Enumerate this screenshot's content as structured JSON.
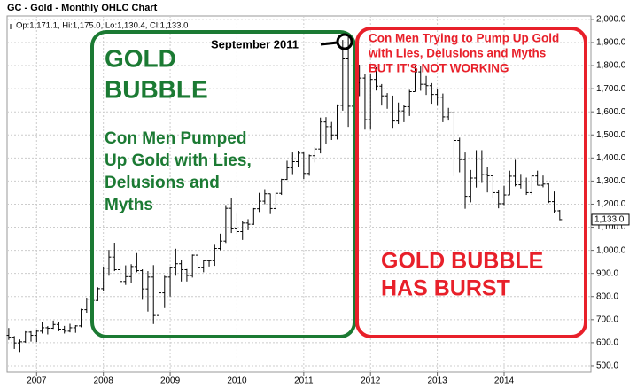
{
  "chart_data": {
    "type": "ohlc",
    "title": "GC - Gold - Monthly OHLC Chart",
    "legend_text": "Op:1,171.1, Hi:1,175.0, Lo:1,130.4, Cl:1,133.0",
    "color": "#000000",
    "grid": true,
    "ylim": [
      473,
      2015
    ],
    "yticks": [
      {
        "value": 500,
        "label": "500.0"
      },
      {
        "value": 600,
        "label": "600.0"
      },
      {
        "value": 700,
        "label": "700.0"
      },
      {
        "value": 800,
        "label": "800.0"
      },
      {
        "value": 900,
        "label": "900.0"
      },
      {
        "value": 1000,
        "label": "1,000.0"
      },
      {
        "value": 1100,
        "label": "1,100.0"
      },
      {
        "value": 1200,
        "label": "1,200.0"
      },
      {
        "value": 1300,
        "label": "1,300.0"
      },
      {
        "value": 1400,
        "label": "1,400.0"
      },
      {
        "value": 1500,
        "label": "1,500.0"
      },
      {
        "value": 1600,
        "label": "1,600.0"
      },
      {
        "value": 1700,
        "label": "1,700.0"
      },
      {
        "value": 1800,
        "label": "1,800.0"
      },
      {
        "value": 1900,
        "label": "1,900.0"
      },
      {
        "value": 2000,
        "label": "2,000.0"
      }
    ],
    "xlim": [
      -0.3,
      104.6
    ],
    "xticks": [
      {
        "value": 5,
        "label": "2007"
      },
      {
        "value": 17,
        "label": "2008"
      },
      {
        "value": 29,
        "label": "2009"
      },
      {
        "value": 41,
        "label": "2010"
      },
      {
        "value": 53,
        "label": "2011"
      },
      {
        "value": 65,
        "label": "2012"
      },
      {
        "value": 77,
        "label": "2013"
      },
      {
        "value": 89,
        "label": "2014"
      }
    ],
    "last_label": {
      "value": 1133,
      "label": "1,133.0"
    },
    "ohlc": [
      [
        632,
        664,
        612,
        624
      ],
      [
        624,
        629,
        573,
        599
      ],
      [
        599,
        614,
        560,
        604
      ],
      [
        604,
        650,
        600,
        646
      ],
      [
        646,
        650,
        605,
        632
      ],
      [
        632,
        655,
        603,
        650
      ],
      [
        650,
        690,
        640,
        665
      ],
      [
        665,
        672,
        636,
        663
      ],
      [
        663,
        696,
        660,
        679
      ],
      [
        679,
        691,
        650,
        659
      ],
      [
        659,
        673,
        640,
        650
      ],
      [
        650,
        682,
        645,
        665
      ],
      [
        665,
        676,
        643,
        673
      ],
      [
        673,
        747,
        667,
        743
      ],
      [
        743,
        795,
        730,
        789
      ],
      [
        789,
        848,
        775,
        783
      ],
      [
        783,
        840,
        780,
        834
      ],
      [
        834,
        930,
        825,
        923
      ],
      [
        923,
        1002,
        890,
        971
      ],
      [
        971,
        1033,
        910,
        916
      ],
      [
        916,
        935,
        860,
        865
      ],
      [
        865,
        935,
        850,
        886
      ],
      [
        886,
        940,
        860,
        930
      ],
      [
        930,
        988,
        905,
        912
      ],
      [
        912,
        918,
        786,
        833
      ],
      [
        833,
        910,
        735,
        884
      ],
      [
        884,
        936,
        681,
        718
      ],
      [
        718,
        830,
        705,
        816
      ],
      [
        816,
        890,
        750,
        884
      ],
      [
        884,
        930,
        800,
        927
      ],
      [
        927,
        1007,
        890,
        942
      ],
      [
        942,
        960,
        865,
        916
      ],
      [
        916,
        919,
        865,
        891
      ],
      [
        891,
        982,
        882,
        979
      ],
      [
        979,
        990,
        915,
        927
      ],
      [
        927,
        960,
        905,
        955
      ],
      [
        955,
        960,
        930,
        955
      ],
      [
        955,
        1024,
        933,
        1008
      ],
      [
        1008,
        1072,
        1000,
        1040
      ],
      [
        1040,
        1196,
        1032,
        1182
      ],
      [
        1182,
        1227,
        1075,
        1096
      ],
      [
        1096,
        1163,
        1070,
        1081
      ],
      [
        1081,
        1127,
        1045,
        1118
      ],
      [
        1118,
        1135,
        1087,
        1113
      ],
      [
        1113,
        1183,
        1110,
        1180
      ],
      [
        1180,
        1249,
        1166,
        1213
      ],
      [
        1213,
        1265,
        1200,
        1245
      ],
      [
        1245,
        1246,
        1157,
        1181
      ],
      [
        1181,
        1250,
        1176,
        1247
      ],
      [
        1247,
        1310,
        1240,
        1307
      ],
      [
        1307,
        1388,
        1305,
        1357
      ],
      [
        1357,
        1424,
        1330,
        1384
      ],
      [
        1384,
        1431,
        1362,
        1421
      ],
      [
        1421,
        1424,
        1309,
        1333
      ],
      [
        1333,
        1415,
        1323,
        1410
      ],
      [
        1410,
        1447,
        1381,
        1439
      ],
      [
        1439,
        1575,
        1420,
        1556
      ],
      [
        1556,
        1577,
        1462,
        1536
      ],
      [
        1536,
        1556,
        1478,
        1500
      ],
      [
        1500,
        1632,
        1480,
        1628
      ],
      [
        1628,
        1911,
        1605,
        1829
      ],
      [
        1829,
        1923,
        1535,
        1624
      ],
      [
        1624,
        1755,
        1603,
        1725
      ],
      [
        1725,
        1804,
        1668,
        1746
      ],
      [
        1746,
        1764,
        1523,
        1566
      ],
      [
        1566,
        1763,
        1523,
        1740
      ],
      [
        1740,
        1792,
        1692,
        1711
      ],
      [
        1711,
        1720,
        1627,
        1669
      ],
      [
        1669,
        1681,
        1613,
        1664
      ],
      [
        1664,
        1670,
        1527,
        1560
      ],
      [
        1560,
        1640,
        1547,
        1604
      ],
      [
        1604,
        1630,
        1555,
        1622
      ],
      [
        1622,
        1695,
        1582,
        1687
      ],
      [
        1687,
        1796,
        1687,
        1773
      ],
      [
        1773,
        1798,
        1691,
        1719
      ],
      [
        1719,
        1755,
        1673,
        1713
      ],
      [
        1713,
        1724,
        1635,
        1675
      ],
      [
        1675,
        1697,
        1626,
        1663
      ],
      [
        1663,
        1679,
        1555,
        1578
      ],
      [
        1578,
        1617,
        1562,
        1596
      ],
      [
        1596,
        1605,
        1321,
        1476
      ],
      [
        1476,
        1488,
        1338,
        1393
      ],
      [
        1393,
        1424,
        1180,
        1234
      ],
      [
        1234,
        1348,
        1208,
        1313
      ],
      [
        1313,
        1434,
        1272,
        1395
      ],
      [
        1395,
        1434,
        1292,
        1328
      ],
      [
        1328,
        1362,
        1251,
        1323
      ],
      [
        1323,
        1326,
        1227,
        1250
      ],
      [
        1250,
        1262,
        1182,
        1202
      ],
      [
        1202,
        1280,
        1196,
        1240
      ],
      [
        1240,
        1345,
        1239,
        1321
      ],
      [
        1321,
        1392,
        1277,
        1284
      ],
      [
        1284,
        1331,
        1268,
        1296
      ],
      [
        1296,
        1315,
        1240,
        1250
      ],
      [
        1250,
        1327,
        1240,
        1322
      ],
      [
        1322,
        1345,
        1281,
        1282
      ],
      [
        1282,
        1324,
        1273,
        1287
      ],
      [
        1287,
        1290,
        1205,
        1211
      ],
      [
        1211,
        1255,
        1160,
        1171
      ],
      [
        1171.1,
        1175,
        1130.4,
        1133
      ]
    ],
    "annotations": {
      "peak": "September 2011",
      "bubble": [
        "GOLD",
        "BUBBLE"
      ],
      "pumped": [
        "Con Men Pumped",
        "Up Gold with Lies,",
        "Delusions and",
        "Myths"
      ],
      "trying": [
        "Con Men Trying to Pump Up Gold",
        "with Lies, Delusions and Myths",
        "BUT IT'S NOT WORKING"
      ],
      "burst": [
        "GOLD BUBBLE",
        "HAS BURST"
      ]
    }
  }
}
